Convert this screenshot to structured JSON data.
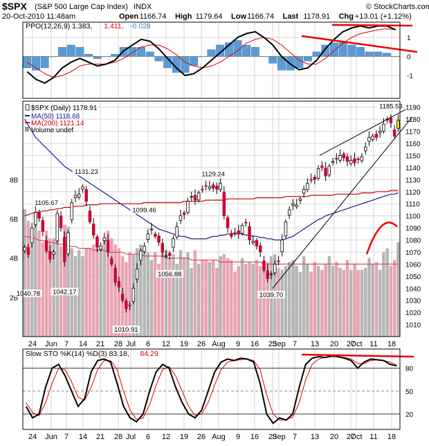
{
  "header": {
    "symbol": "$SPX",
    "name": "(S&P 500 Large Cap Index)",
    "exchange": "INDX",
    "date_time": "20-Oct-2010 11:48am",
    "watermark": "© StockCharts.com",
    "quote_parts": [
      {
        "label": "Open",
        "value": "1166.74"
      },
      {
        "label": "High",
        "value": "1179.64"
      },
      {
        "label": "Low",
        "value": "1166.74"
      },
      {
        "label": "Last",
        "value": "1178.91"
      },
      {
        "label": "Chg",
        "value": "+13.01 (+1.12%)"
      }
    ]
  },
  "colors": {
    "up": "#ffffff",
    "down": "#cc0033",
    "ma50": "#1a1a8c",
    "ma200": "#cc0000",
    "histogram": "#5b9bd5",
    "ppo_line": "#000000",
    "signal_line": "#dd0000",
    "volume_up": "#b5b5b5",
    "volume_down": "#e8a3b1",
    "last_candle": "#ffee00",
    "annotation": "#ee0000"
  },
  "chart_data": [
    {
      "type": "line",
      "panel": "ppo",
      "legend": [
        {
          "text": "PPO(12,26,9) 1.383,",
          "color": "#000000"
        },
        {
          "text": "1.411,",
          "color": "#dd0000"
        },
        {
          "text": "-0.028",
          "color": "#3a7fc4"
        }
      ],
      "ylim": [
        -2.2,
        1.8
      ],
      "yticks": [
        "1",
        "0",
        "-1"
      ],
      "yticks_values": [
        1,
        0,
        -1
      ],
      "series": [
        {
          "values": [
            -0.8,
            -1.2,
            -1.4,
            -1.1,
            -0.6,
            -0.3,
            -0.1,
            -0.3,
            -0.5,
            -0.4,
            -0.2,
            0.3,
            0.6,
            0.9,
            0.8,
            0.4,
            -0.1,
            -0.6,
            -1.0,
            -0.9,
            -0.6,
            -0.2,
            0.2,
            0.6,
            1.0,
            1.2,
            1.3,
            1.0,
            0.6,
            0.0,
            -0.4,
            -0.7,
            -0.6,
            -0.2,
            0.4,
            0.9,
            1.3,
            1.5,
            1.6,
            1.5,
            1.6,
            1.6,
            1.4
          ]
        },
        {
          "values": [
            -0.3,
            -0.6,
            -0.9,
            -1.1,
            -1.0,
            -0.8,
            -0.5,
            -0.4,
            -0.4,
            -0.4,
            -0.3,
            -0.1,
            0.2,
            0.5,
            0.6,
            0.6,
            0.4,
            0.1,
            -0.3,
            -0.5,
            -0.6,
            -0.5,
            -0.3,
            0.0,
            0.3,
            0.7,
            0.9,
            1.0,
            0.9,
            0.6,
            0.2,
            -0.2,
            -0.4,
            -0.4,
            -0.1,
            0.3,
            0.7,
            1.0,
            1.2,
            1.3,
            1.4,
            1.45,
            1.41
          ]
        }
      ]
    },
    {
      "type": "candlestick",
      "panel": "price",
      "legend": [
        {
          "text": "$SPX (Daily) 1178.91",
          "color": "#000000"
        },
        {
          "text": "MA(50) 1118.68",
          "color": "#1a1a8c"
        },
        {
          "text": "MA(200) 1121.14",
          "color": "#cc0000"
        },
        {
          "text": "Volume undef",
          "color": "#000000"
        }
      ],
      "ylim": [
        1000,
        1195
      ],
      "yticks": [
        "1190",
        "1180",
        "1170",
        "1160",
        "1150",
        "1140",
        "1130",
        "1120",
        "1110",
        "1100",
        "1090",
        "1080",
        "1070",
        "1060",
        "1050",
        "1040",
        "1030",
        "1020",
        "1010"
      ],
      "yticks_values": [
        1190,
        1180,
        1170,
        1160,
        1150,
        1140,
        1130,
        1120,
        1110,
        1100,
        1090,
        1080,
        1070,
        1060,
        1050,
        1040,
        1030,
        1020,
        1010
      ],
      "volume_ticks": [
        "8B",
        "6B",
        "4B",
        "2B"
      ],
      "volume_ticks_values": [
        8,
        6,
        4,
        2
      ],
      "volume_max": 12,
      "x_labels": [
        "24",
        "Jun",
        "7",
        "14",
        "21",
        "28",
        "Jul",
        "6",
        "12",
        "19",
        "26",
        "Aug",
        "9",
        "16",
        "23",
        "Sep",
        "7",
        "13",
        "20",
        "27",
        "Oct",
        "11",
        "18"
      ],
      "annotations": [
        {
          "text": "1105.67",
          "i": 6,
          "value": 1105.67
        },
        {
          "text": "1131.23",
          "i": 17,
          "value": 1131.23
        },
        {
          "text": "1099.46",
          "i": 33,
          "value": 1099.46
        },
        {
          "text": "1129.24",
          "i": 52,
          "value": 1129.24
        },
        {
          "text": "1185.53",
          "i": 101,
          "value": 1185.53
        },
        {
          "text": "1040.78",
          "i": 1,
          "value": 1040.78
        },
        {
          "text": "1042.17",
          "i": 11,
          "value": 1042.17
        },
        {
          "text": "1010.91",
          "i": 28,
          "value": 1010.91
        },
        {
          "text": "1056.88",
          "i": 40,
          "value": 1056.88
        },
        {
          "text": "1039.70",
          "i": 68,
          "value": 1039.7
        }
      ],
      "closes": [
        1074,
        1068,
        1090,
        1103,
        1098,
        1087,
        1071,
        1064,
        1070,
        1102,
        1090,
        1062,
        1086,
        1111,
        1117,
        1118,
        1124,
        1112,
        1095,
        1084,
        1074,
        1075,
        1082,
        1070,
        1060,
        1045,
        1041,
        1030,
        1023,
        1026,
        1040,
        1056,
        1071,
        1075,
        1085,
        1089,
        1083,
        1078,
        1070,
        1067,
        1067,
        1081,
        1091,
        1100,
        1101,
        1112,
        1116,
        1113,
        1119,
        1122,
        1125,
        1124,
        1123,
        1122,
        1127,
        1100,
        1090,
        1083,
        1086,
        1085,
        1092,
        1094,
        1080,
        1079,
        1075,
        1070,
        1055,
        1048,
        1052,
        1060,
        1062,
        1080,
        1095,
        1105,
        1110,
        1109,
        1114,
        1122,
        1127,
        1130,
        1130,
        1139,
        1140,
        1133,
        1141,
        1145,
        1147,
        1150,
        1148,
        1145,
        1146,
        1144,
        1147,
        1149,
        1157,
        1165,
        1166,
        1165,
        1170,
        1176,
        1180,
        1177,
        1166,
        1179
      ],
      "volumes": [
        6.5,
        5.9,
        5.3,
        5.9,
        5.4,
        4.8,
        5.4,
        5.0,
        5.0,
        5.5,
        4.6,
        5.7,
        5.6,
        4.5,
        4.1,
        4.4,
        4.1,
        4.5,
        4.5,
        4.7,
        4.5,
        4.5,
        4.9,
        5.4,
        5.0,
        4.7,
        4.5,
        4.1,
        3.8,
        4.3,
        4.2,
        4.5,
        4.7,
        4.3,
        4.3,
        3.9,
        4.3,
        3.7,
        4.4,
        4.4,
        4.0,
        4.2,
        3.7,
        4.4,
        4.0,
        4.3,
        3.5,
        4.4,
        3.7,
        3.9,
        3.9,
        3.8,
        3.9,
        3.5,
        4.1,
        4.2,
        4.0,
        3.9,
        3.3,
        3.6,
        4.0,
        3.7,
        3.8,
        3.7,
        3.9,
        3.6,
        3.5,
        3.8,
        4.1,
        4.2,
        3.5,
        3.4,
        3.6,
        3.8,
        3.9,
        3.6,
        3.3,
        4.1,
        3.7,
        3.3,
        3.8,
        3.6,
        3.4,
        3.7,
        4.1,
        3.6,
        3.8,
        3.5,
        3.4,
        3.9,
        3.4,
        3.7,
        3.4,
        3.4,
        3.5,
        4.0,
        3.7,
        3.8,
        3.4,
        4.3,
        4.5,
        3.6,
        3.9,
        4.8
      ],
      "ma50": [
        1180,
        1175,
        1170,
        1165,
        1162,
        1159,
        1156,
        1153,
        1150,
        1147,
        1144,
        1141,
        1139,
        1137,
        1135,
        1133,
        1131,
        1129,
        1127,
        1125,
        1123,
        1121,
        1119,
        1117,
        1115,
        1113,
        1111,
        1109,
        1107,
        1105,
        1103,
        1101,
        1099,
        1097,
        1095,
        1093,
        1091,
        1089,
        1088,
        1087,
        1086,
        1085,
        1084,
        1083,
        1083,
        1082,
        1081,
        1081,
        1081,
        1081,
        1081,
        1082,
        1083,
        1083,
        1084,
        1084,
        1085,
        1085,
        1085,
        1085,
        1085,
        1084,
        1084,
        1083,
        1083,
        1082,
        1082,
        1081,
        1081,
        1080,
        1080,
        1080,
        1081,
        1082,
        1083,
        1085,
        1087,
        1089,
        1091,
        1093,
        1095,
        1097,
        1098,
        1100,
        1101,
        1102,
        1103,
        1104,
        1105,
        1106,
        1107,
        1108,
        1109,
        1110,
        1111,
        1112,
        1113,
        1114,
        1115,
        1116,
        1117,
        1118,
        1118,
        1119
      ],
      "ma200": [
        1100,
        1101,
        1102,
        1103,
        1103,
        1104,
        1104,
        1105,
        1105,
        1106,
        1106,
        1107,
        1107,
        1107,
        1108,
        1108,
        1108,
        1109,
        1109,
        1109,
        1109,
        1110,
        1110,
        1110,
        1110,
        1110,
        1110,
        1110,
        1110,
        1110,
        1110,
        1110,
        1110,
        1111,
        1111,
        1111,
        1111,
        1111,
        1111,
        1111,
        1111,
        1111,
        1111,
        1111,
        1112,
        1112,
        1112,
        1112,
        1112,
        1112,
        1113,
        1113,
        1113,
        1113,
        1113,
        1113,
        1114,
        1114,
        1114,
        1114,
        1114,
        1114,
        1114,
        1114,
        1115,
        1115,
        1115,
        1115,
        1115,
        1115,
        1115,
        1115,
        1116,
        1116,
        1116,
        1116,
        1116,
        1116,
        1116,
        1117,
        1117,
        1117,
        1117,
        1117,
        1117,
        1117,
        1118,
        1118,
        1118,
        1118,
        1118,
        1118,
        1118,
        1119,
        1119,
        1119,
        1119,
        1120,
        1120,
        1120,
        1120,
        1121,
        1121,
        1121
      ],
      "ma_volume": [
        5.1,
        5.1,
        5.0,
        5.0,
        4.9,
        4.9,
        4.8,
        4.8,
        4.8,
        4.7,
        4.7,
        4.7,
        4.6,
        4.6,
        4.6,
        4.5,
        4.5,
        4.5,
        4.5,
        4.4,
        4.4,
        4.4,
        4.4,
        4.3,
        4.3,
        4.3,
        4.3,
        4.3,
        4.2,
        4.2,
        4.2,
        4.2,
        4.2,
        4.1,
        4.1,
        4.1,
        4.1,
        4.1,
        4.1,
        4.0,
        4.0,
        4.0,
        4.0,
        4.0,
        4.0,
        4.0,
        3.9,
        3.9,
        3.9,
        3.9,
        3.9,
        3.9,
        3.9,
        3.9,
        3.8,
        3.8,
        3.8,
        3.8,
        3.8,
        3.8,
        3.8,
        3.8,
        3.8,
        3.8,
        3.8,
        3.8,
        3.7,
        3.7,
        3.7,
        3.7,
        3.7,
        3.7,
        3.7,
        3.7,
        3.7,
        3.7,
        3.7,
        3.7,
        3.7,
        3.7,
        3.7,
        3.7,
        3.7,
        3.7,
        3.7,
        3.7,
        3.7,
        3.7,
        3.7,
        3.7,
        3.7,
        3.7,
        3.7,
        3.7,
        3.7,
        3.7,
        3.7,
        3.7,
        3.7,
        3.7,
        3.7,
        3.7,
        3.7,
        3.7
      ]
    },
    {
      "type": "line",
      "panel": "stochastic",
      "legend": [
        {
          "text": "Slow STO %K(14) %D(3) 83.18,",
          "color": "#000000"
        },
        {
          "text": "84.29",
          "color": "#dd0000"
        }
      ],
      "ylim": [
        0,
        105
      ],
      "yticks": [
        "80",
        "50",
        "20"
      ],
      "yticks_values": [
        80,
        50,
        20
      ],
      "x_labels": [
        "24",
        "Jun",
        "7",
        "14",
        "21",
        "28",
        "Jul",
        "6",
        "12",
        "19",
        "26",
        "Aug",
        "9",
        "16",
        "23",
        "Sep",
        "7",
        "13",
        "20",
        "27",
        "Oct",
        "11",
        "18"
      ],
      "series": [
        {
          "values": [
            30,
            15,
            20,
            55,
            80,
            85,
            70,
            50,
            30,
            40,
            75,
            90,
            92,
            88,
            60,
            30,
            15,
            10,
            20,
            50,
            75,
            85,
            80,
            55,
            35,
            20,
            15,
            25,
            50,
            75,
            88,
            92,
            90,
            93,
            92,
            88,
            60,
            20,
            8,
            15,
            12,
            20,
            55,
            85,
            93,
            95,
            94,
            96,
            95,
            93,
            90,
            80,
            88,
            92,
            91,
            90,
            85,
            83
          ]
        },
        {
          "values": [
            35,
            22,
            18,
            35,
            60,
            80,
            78,
            62,
            42,
            38,
            55,
            78,
            90,
            90,
            78,
            50,
            25,
            13,
            15,
            32,
            58,
            78,
            82,
            70,
            50,
            30,
            18,
            20,
            35,
            58,
            78,
            88,
            90,
            91,
            92,
            90,
            78,
            45,
            20,
            12,
            13,
            16,
            35,
            65,
            85,
            92,
            94,
            95,
            95,
            94,
            92,
            86,
            86,
            90,
            91,
            90,
            88,
            84
          ]
        }
      ]
    }
  ]
}
